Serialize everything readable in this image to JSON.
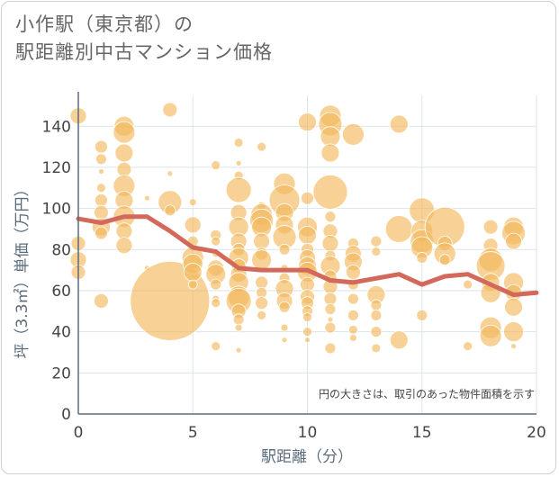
{
  "title_line1": "小作駅（東京都）の",
  "title_line2": "駅距離別中古マンション価格",
  "chart_data": {
    "type": "scatter",
    "xlabel": "駅距離（分）",
    "ylabel": "坪（3.3㎡）単価（万円）",
    "xlim": [
      0,
      20
    ],
    "ylim": [
      0,
      155
    ],
    "xticks": [
      0,
      5,
      10,
      15,
      20
    ],
    "yticks": [
      0,
      20,
      40,
      60,
      80,
      100,
      120,
      140
    ],
    "xtick_labels": [
      "0",
      "5",
      "10",
      "15",
      "20"
    ],
    "ytick_labels": [
      "0",
      "20",
      "40",
      "60",
      "80",
      "100",
      "120",
      "140"
    ],
    "grid": true,
    "annotation": "円の大きさは、取引のあった物件面積を示す",
    "colors": {
      "bubble": "#f3b95e",
      "trend": "#d2695a",
      "grid": "#dde3ea",
      "axis": "#5b6b7c"
    },
    "trend_line": {
      "x": [
        0,
        1,
        2,
        3,
        4,
        5,
        6,
        7,
        8,
        9,
        10,
        11,
        12,
        13,
        14,
        15,
        16,
        17,
        18,
        19,
        20
      ],
      "y": [
        95,
        93,
        96,
        96,
        89,
        81,
        79,
        71,
        70,
        70,
        70,
        65,
        64,
        66,
        68,
        63,
        67,
        68,
        63,
        58,
        59
      ]
    },
    "bubbles": [
      {
        "x": 0,
        "y": 145,
        "s": 9
      },
      {
        "x": 0,
        "y": 83,
        "s": 8
      },
      {
        "x": 0,
        "y": 75,
        "s": 9
      },
      {
        "x": 0,
        "y": 69,
        "s": 8
      },
      {
        "x": 1,
        "y": 130,
        "s": 7
      },
      {
        "x": 1,
        "y": 124,
        "s": 6
      },
      {
        "x": 1,
        "y": 118,
        "s": 3
      },
      {
        "x": 1,
        "y": 110,
        "s": 5
      },
      {
        "x": 1,
        "y": 104,
        "s": 7
      },
      {
        "x": 1,
        "y": 98,
        "s": 8
      },
      {
        "x": 1,
        "y": 91,
        "s": 10
      },
      {
        "x": 1,
        "y": 88,
        "s": 7
      },
      {
        "x": 1,
        "y": 55,
        "s": 8
      },
      {
        "x": 2,
        "y": 140,
        "s": 11
      },
      {
        "x": 2,
        "y": 137,
        "s": 12
      },
      {
        "x": 2,
        "y": 127,
        "s": 10
      },
      {
        "x": 2,
        "y": 119,
        "s": 8
      },
      {
        "x": 2,
        "y": 111,
        "s": 12
      },
      {
        "x": 2,
        "y": 104,
        "s": 10
      },
      {
        "x": 2,
        "y": 96,
        "s": 12
      },
      {
        "x": 2,
        "y": 89,
        "s": 9
      },
      {
        "x": 2,
        "y": 82,
        "s": 9
      },
      {
        "x": 3,
        "y": 105,
        "s": 3
      },
      {
        "x": 3,
        "y": 71,
        "s": 3
      },
      {
        "x": 4,
        "y": 148,
        "s": 8
      },
      {
        "x": 4,
        "y": 117,
        "s": 3
      },
      {
        "x": 4,
        "y": 103,
        "s": 13
      },
      {
        "x": 4,
        "y": 99,
        "s": 6
      },
      {
        "x": 4,
        "y": 55,
        "s": 44
      },
      {
        "x": 5,
        "y": 103,
        "s": 4
      },
      {
        "x": 5,
        "y": 92,
        "s": 9
      },
      {
        "x": 5,
        "y": 84,
        "s": 6
      },
      {
        "x": 5,
        "y": 76,
        "s": 12
      },
      {
        "x": 5,
        "y": 73,
        "s": 11
      },
      {
        "x": 5,
        "y": 69,
        "s": 10
      },
      {
        "x": 5,
        "y": 63,
        "s": 5
      },
      {
        "x": 6,
        "y": 121,
        "s": 5
      },
      {
        "x": 6,
        "y": 87,
        "s": 6
      },
      {
        "x": 6,
        "y": 84,
        "s": 5
      },
      {
        "x": 6,
        "y": 78,
        "s": 4
      },
      {
        "x": 6,
        "y": 71,
        "s": 9
      },
      {
        "x": 6,
        "y": 68,
        "s": 11
      },
      {
        "x": 6,
        "y": 63,
        "s": 6
      },
      {
        "x": 6,
        "y": 56,
        "s": 4
      },
      {
        "x": 6,
        "y": 54,
        "s": 5
      },
      {
        "x": 6,
        "y": 33,
        "s": 5
      },
      {
        "x": 7,
        "y": 132,
        "s": 5
      },
      {
        "x": 7,
        "y": 122,
        "s": 3
      },
      {
        "x": 7,
        "y": 116,
        "s": 5
      },
      {
        "x": 7,
        "y": 109,
        "s": 14
      },
      {
        "x": 7,
        "y": 98,
        "s": 9
      },
      {
        "x": 7,
        "y": 91,
        "s": 11
      },
      {
        "x": 7,
        "y": 84,
        "s": 9
      },
      {
        "x": 7,
        "y": 80,
        "s": 7
      },
      {
        "x": 7,
        "y": 76,
        "s": 11
      },
      {
        "x": 7,
        "y": 72,
        "s": 8
      },
      {
        "x": 7,
        "y": 68,
        "s": 9
      },
      {
        "x": 7,
        "y": 64,
        "s": 11
      },
      {
        "x": 7,
        "y": 57,
        "s": 12
      },
      {
        "x": 7,
        "y": 55,
        "s": 14
      },
      {
        "x": 7,
        "y": 50,
        "s": 8
      },
      {
        "x": 7,
        "y": 46,
        "s": 6
      },
      {
        "x": 7,
        "y": 42,
        "s": 4
      },
      {
        "x": 7,
        "y": 31,
        "s": 3
      },
      {
        "x": 8,
        "y": 130,
        "s": 5
      },
      {
        "x": 8,
        "y": 101,
        "s": 5
      },
      {
        "x": 8,
        "y": 97,
        "s": 12
      },
      {
        "x": 8,
        "y": 94,
        "s": 13
      },
      {
        "x": 8,
        "y": 91,
        "s": 11
      },
      {
        "x": 8,
        "y": 84,
        "s": 9
      },
      {
        "x": 8,
        "y": 78,
        "s": 7
      },
      {
        "x": 8,
        "y": 75,
        "s": 11
      },
      {
        "x": 8,
        "y": 64,
        "s": 7
      },
      {
        "x": 8,
        "y": 59,
        "s": 6
      },
      {
        "x": 8,
        "y": 54,
        "s": 7
      },
      {
        "x": 8,
        "y": 48,
        "s": 5
      },
      {
        "x": 9,
        "y": 112,
        "s": 12
      },
      {
        "x": 9,
        "y": 104,
        "s": 17
      },
      {
        "x": 9,
        "y": 98,
        "s": 10
      },
      {
        "x": 9,
        "y": 92,
        "s": 10
      },
      {
        "x": 9,
        "y": 86,
        "s": 13
      },
      {
        "x": 9,
        "y": 80,
        "s": 6
      },
      {
        "x": 9,
        "y": 71,
        "s": 4
      },
      {
        "x": 9,
        "y": 66,
        "s": 6
      },
      {
        "x": 9,
        "y": 61,
        "s": 10
      },
      {
        "x": 9,
        "y": 55,
        "s": 9
      },
      {
        "x": 9,
        "y": 52,
        "s": 6
      },
      {
        "x": 9,
        "y": 42,
        "s": 4
      },
      {
        "x": 9,
        "y": 36,
        "s": 3
      },
      {
        "x": 10,
        "y": 142,
        "s": 10
      },
      {
        "x": 10,
        "y": 105,
        "s": 7
      },
      {
        "x": 10,
        "y": 91,
        "s": 11
      },
      {
        "x": 10,
        "y": 87,
        "s": 10
      },
      {
        "x": 10,
        "y": 80,
        "s": 7
      },
      {
        "x": 10,
        "y": 76,
        "s": 9
      },
      {
        "x": 10,
        "y": 72,
        "s": 10
      },
      {
        "x": 10,
        "y": 69,
        "s": 11
      },
      {
        "x": 10,
        "y": 63,
        "s": 8
      },
      {
        "x": 10,
        "y": 57,
        "s": 8
      },
      {
        "x": 10,
        "y": 54,
        "s": 7
      },
      {
        "x": 10,
        "y": 50,
        "s": 6
      },
      {
        "x": 10,
        "y": 47,
        "s": 5
      },
      {
        "x": 10,
        "y": 40,
        "s": 5
      },
      {
        "x": 10,
        "y": 36,
        "s": 3
      },
      {
        "x": 11,
        "y": 145,
        "s": 12
      },
      {
        "x": 11,
        "y": 141,
        "s": 13
      },
      {
        "x": 11,
        "y": 135,
        "s": 11
      },
      {
        "x": 11,
        "y": 127,
        "s": 10
      },
      {
        "x": 11,
        "y": 108,
        "s": 19
      },
      {
        "x": 11,
        "y": 96,
        "s": 6
      },
      {
        "x": 11,
        "y": 89,
        "s": 8
      },
      {
        "x": 11,
        "y": 83,
        "s": 9
      },
      {
        "x": 11,
        "y": 77,
        "s": 6
      },
      {
        "x": 11,
        "y": 72,
        "s": 11
      },
      {
        "x": 11,
        "y": 67,
        "s": 7
      },
      {
        "x": 11,
        "y": 62,
        "s": 8
      },
      {
        "x": 11,
        "y": 56,
        "s": 7
      },
      {
        "x": 11,
        "y": 51,
        "s": 6
      },
      {
        "x": 11,
        "y": 46,
        "s": 3
      },
      {
        "x": 11,
        "y": 42,
        "s": 6
      },
      {
        "x": 11,
        "y": 32,
        "s": 6
      },
      {
        "x": 12,
        "y": 136,
        "s": 12
      },
      {
        "x": 12,
        "y": 83,
        "s": 6
      },
      {
        "x": 12,
        "y": 78,
        "s": 9
      },
      {
        "x": 12,
        "y": 74,
        "s": 10
      },
      {
        "x": 12,
        "y": 69,
        "s": 8
      },
      {
        "x": 12,
        "y": 63,
        "s": 6
      },
      {
        "x": 12,
        "y": 56,
        "s": 6
      },
      {
        "x": 12,
        "y": 48,
        "s": 6
      },
      {
        "x": 12,
        "y": 41,
        "s": 5
      },
      {
        "x": 12,
        "y": 37,
        "s": 4
      },
      {
        "x": 13,
        "y": 84,
        "s": 6
      },
      {
        "x": 13,
        "y": 79,
        "s": 5
      },
      {
        "x": 13,
        "y": 58,
        "s": 10
      },
      {
        "x": 13,
        "y": 53,
        "s": 6
      },
      {
        "x": 13,
        "y": 48,
        "s": 6
      },
      {
        "x": 13,
        "y": 40,
        "s": 6
      },
      {
        "x": 13,
        "y": 32,
        "s": 5
      },
      {
        "x": 14,
        "y": 141,
        "s": 10
      },
      {
        "x": 14,
        "y": 90,
        "s": 15
      },
      {
        "x": 14,
        "y": 36,
        "s": 10
      },
      {
        "x": 15,
        "y": 99,
        "s": 14
      },
      {
        "x": 15,
        "y": 89,
        "s": 12
      },
      {
        "x": 15,
        "y": 84,
        "s": 13
      },
      {
        "x": 15,
        "y": 81,
        "s": 12
      },
      {
        "x": 15,
        "y": 76,
        "s": 6
      },
      {
        "x": 15,
        "y": 48,
        "s": 6
      },
      {
        "x": 16,
        "y": 91,
        "s": 22
      },
      {
        "x": 16,
        "y": 83,
        "s": 8
      },
      {
        "x": 16,
        "y": 78,
        "s": 12
      },
      {
        "x": 16,
        "y": 75,
        "s": 6
      },
      {
        "x": 17,
        "y": 63,
        "s": 5
      },
      {
        "x": 17,
        "y": 33,
        "s": 5
      },
      {
        "x": 18,
        "y": 91,
        "s": 8
      },
      {
        "x": 18,
        "y": 82,
        "s": 8
      },
      {
        "x": 18,
        "y": 75,
        "s": 13
      },
      {
        "x": 18,
        "y": 72,
        "s": 16
      },
      {
        "x": 18,
        "y": 64,
        "s": 10
      },
      {
        "x": 18,
        "y": 59,
        "s": 11
      },
      {
        "x": 18,
        "y": 42,
        "s": 12
      },
      {
        "x": 18,
        "y": 38,
        "s": 12
      },
      {
        "x": 19,
        "y": 91,
        "s": 11
      },
      {
        "x": 19,
        "y": 88,
        "s": 13
      },
      {
        "x": 19,
        "y": 84,
        "s": 9
      },
      {
        "x": 19,
        "y": 64,
        "s": 11
      },
      {
        "x": 19,
        "y": 59,
        "s": 9
      },
      {
        "x": 19,
        "y": 52,
        "s": 10
      },
      {
        "x": 19,
        "y": 40,
        "s": 11
      },
      {
        "x": 19,
        "y": 33,
        "s": 3
      }
    ]
  }
}
